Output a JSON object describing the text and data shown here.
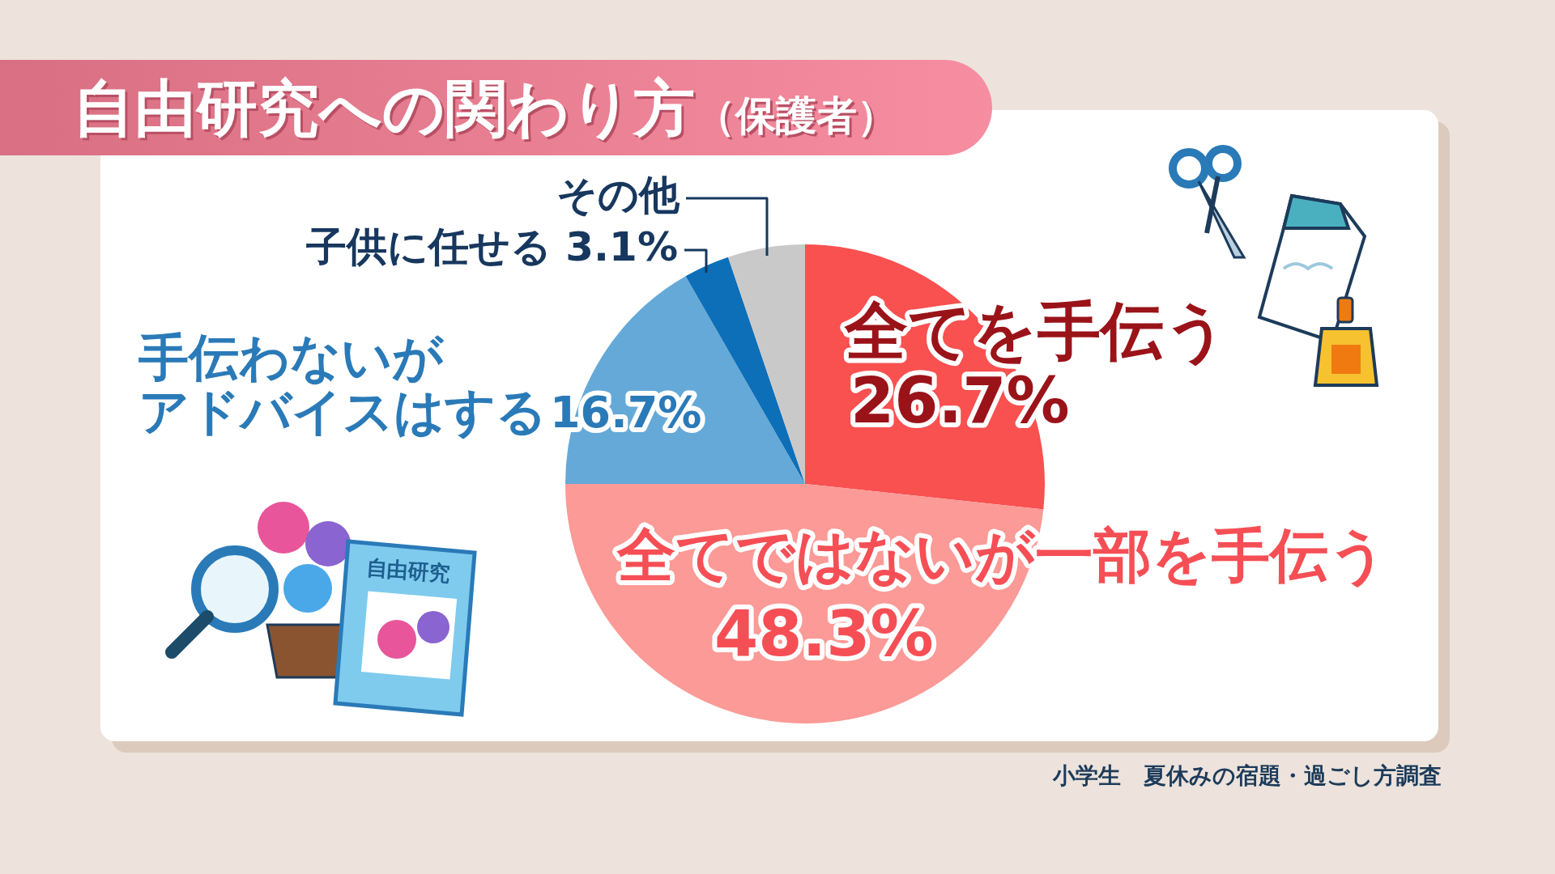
{
  "chart_data": {
    "type": "pie",
    "title": "自由研究への関わり方（保護者）",
    "categories": [
      "全てを手伝う",
      "全てではないが一部を手伝う",
      "手伝わないがアドバイスはする",
      "子供に任せる",
      "その他"
    ],
    "values": [
      26.7,
      48.3,
      16.7,
      3.1,
      5.2
    ],
    "colors": [
      "#f95050",
      "#fb9a96",
      "#65a9d8",
      "#0d6fb8",
      "#c9c9c9"
    ],
    "value_labels": [
      "26.7%",
      "48.3%",
      "16.7%",
      "3.1%",
      null
    ],
    "legend": false,
    "annotations": [
      "小学生　夏休みの宿題・過ごし方調査",
      "自由研究"
    ]
  }
}
